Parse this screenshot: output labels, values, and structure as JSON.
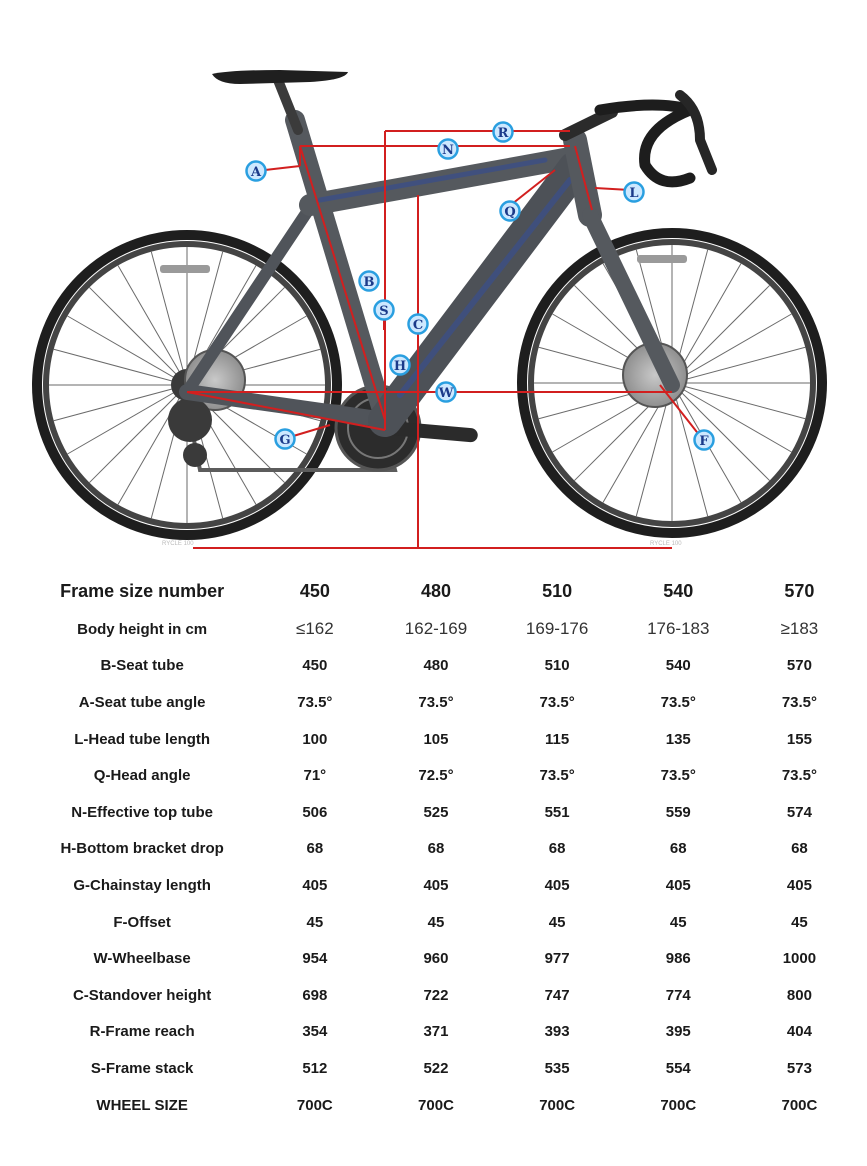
{
  "figure": {
    "rim_label": "RYCLE 100",
    "labels": {
      "A": "A",
      "B": "B",
      "C": "C",
      "F": "F",
      "G": "G",
      "H": "H",
      "L": "L",
      "N": "N",
      "Q": "Q",
      "R": "R",
      "S": "S",
      "W": "W"
    },
    "colors": {
      "frame": "#55595e",
      "accent": "#3c4f86",
      "lines": "#d21f1f",
      "badge_fill": "#cde8ff",
      "badge_ring": "#2a9fe0",
      "badge_text": "#1b3a8a"
    }
  },
  "table": {
    "header": {
      "label": "Frame size number",
      "sizes": [
        "450",
        "480",
        "510",
        "540",
        "570"
      ]
    },
    "rows": [
      {
        "label": "Body height in cm",
        "values": [
          "≤162",
          "162-169",
          "169-176",
          "176-183",
          "≥183"
        ]
      },
      {
        "label": "B-Seat tube",
        "values": [
          "450",
          "480",
          "510",
          "540",
          "570"
        ]
      },
      {
        "label": "A-Seat tube angle",
        "values": [
          "73.5°",
          "73.5°",
          "73.5°",
          "73.5°",
          "73.5°"
        ]
      },
      {
        "label": "L-Head tube length",
        "values": [
          "100",
          "105",
          "115",
          "135",
          "155"
        ]
      },
      {
        "label": "Q-Head angle",
        "values": [
          "71°",
          "72.5°",
          "73.5°",
          "73.5°",
          "73.5°"
        ]
      },
      {
        "label": "N-Effective top tube",
        "values": [
          "506",
          "525",
          "551",
          "559",
          "574"
        ]
      },
      {
        "label": "H-Bottom bracket drop",
        "values": [
          "68",
          "68",
          "68",
          "68",
          "68"
        ]
      },
      {
        "label": "G-Chainstay length",
        "values": [
          "405",
          "405",
          "405",
          "405",
          "405"
        ]
      },
      {
        "label": "F-Offset",
        "values": [
          "45",
          "45",
          "45",
          "45",
          "45"
        ]
      },
      {
        "label": "W-Wheelbase",
        "values": [
          "954",
          "960",
          "977",
          "986",
          "1000"
        ]
      },
      {
        "label": "C-Standover height",
        "values": [
          "698",
          "722",
          "747",
          "774",
          "800"
        ]
      },
      {
        "label": "R-Frame reach",
        "values": [
          "354",
          "371",
          "393",
          "395",
          "404"
        ]
      },
      {
        "label": "S-Frame stack",
        "values": [
          "512",
          "522",
          "535",
          "554",
          "573"
        ]
      },
      {
        "label": "WHEEL SIZE",
        "values": [
          "700C",
          "700C",
          "700C",
          "700C",
          "700C"
        ]
      }
    ]
  }
}
